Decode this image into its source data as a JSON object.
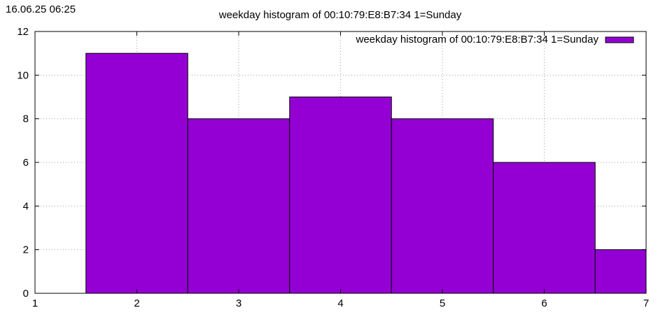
{
  "timestamp": "16.06.25 06:25",
  "chart_data": {
    "type": "bar",
    "title": "weekday histogram of 00:10:79:E8:B7:34 1=Sunday",
    "xlabel": "",
    "ylabel": "",
    "xlim": [
      1,
      7
    ],
    "ylim": [
      0,
      12
    ],
    "xticks": [
      "1",
      "2",
      "3",
      "4",
      "5",
      "6",
      "7"
    ],
    "yticks": [
      "0",
      "2",
      "4",
      "6",
      "8",
      "10",
      "12"
    ],
    "grid": true,
    "legend_position": "top-right",
    "series": [
      {
        "name": "weekday histogram of 00:10:79:E8:B7:34 1=Sunday",
        "color": "#9400d3",
        "x": [
          2,
          3,
          4,
          5,
          6,
          7
        ],
        "values": [
          11,
          8,
          9,
          8,
          6,
          2
        ]
      }
    ]
  }
}
